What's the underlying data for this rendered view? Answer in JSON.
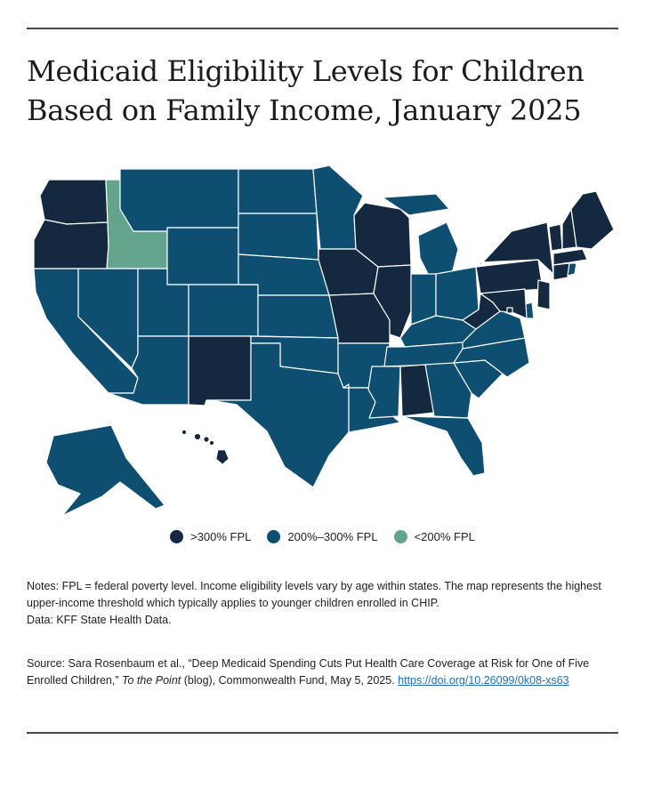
{
  "title": "Medicaid Eligibility Levels for Children Based on Family Income, January 2025",
  "colors": {
    "high": "#14283f",
    "mid": "#0e4e71",
    "low": "#62a58c"
  },
  "legend": [
    {
      "label": ">300% FPL",
      "color": "#14283f"
    },
    {
      "label": "200%–300% FPL",
      "color": "#0e4e71"
    },
    {
      "label": "<200% FPL",
      "color": "#62a58c"
    }
  ],
  "map_data": {
    "categories": {
      "high": ">300% FPL",
      "mid": "200%–300% FPL",
      "low": "<200% FPL"
    },
    "states": {
      "WA": "high",
      "OR": "high",
      "ID": "low",
      "MT": "mid",
      "WY": "mid",
      "CA": "mid",
      "NV": "mid",
      "UT": "mid",
      "AZ": "mid",
      "CO": "mid",
      "NM": "high",
      "ND": "mid",
      "SD": "mid",
      "NE": "mid",
      "KS": "mid",
      "OK": "mid",
      "TX": "mid",
      "MN": "mid",
      "IA": "high",
      "MO": "high",
      "AR": "mid",
      "LA": "mid",
      "WI": "high",
      "IL": "high",
      "MI": "mid",
      "IN": "mid",
      "OH": "mid",
      "KY": "mid",
      "TN": "mid",
      "MS": "mid",
      "AL": "high",
      "GA": "mid",
      "FL": "mid",
      "SC": "mid",
      "NC": "mid",
      "VA": "mid",
      "WV": "high",
      "PA": "high",
      "NY": "high",
      "VT": "high",
      "NH": "high",
      "ME": "high",
      "MA": "high",
      "CT": "high",
      "RI": "mid",
      "NJ": "high",
      "DE": "mid",
      "MD": "high",
      "DC": "high",
      "AK": "mid",
      "HI": "high"
    }
  },
  "notes": {
    "line1": "Notes: FPL = federal poverty level. Income eligibility levels vary by age within states. The map represents the highest upper-income threshold which typically applies to younger children enrolled in CHIP.",
    "line2": "Data: KFF State Health Data."
  },
  "source": {
    "prefix": "Source: Sara Rosenbaum et al., “Deep Medicaid Spending Cuts Put Health Care Coverage at Risk for One of Five Enrolled Children,” ",
    "publication": "To the Point",
    "suffix": " (blog), Commonwealth Fund, May 5, 2025. ",
    "link_text": "https://doi.org/10.26099/0k08-xs63"
  }
}
